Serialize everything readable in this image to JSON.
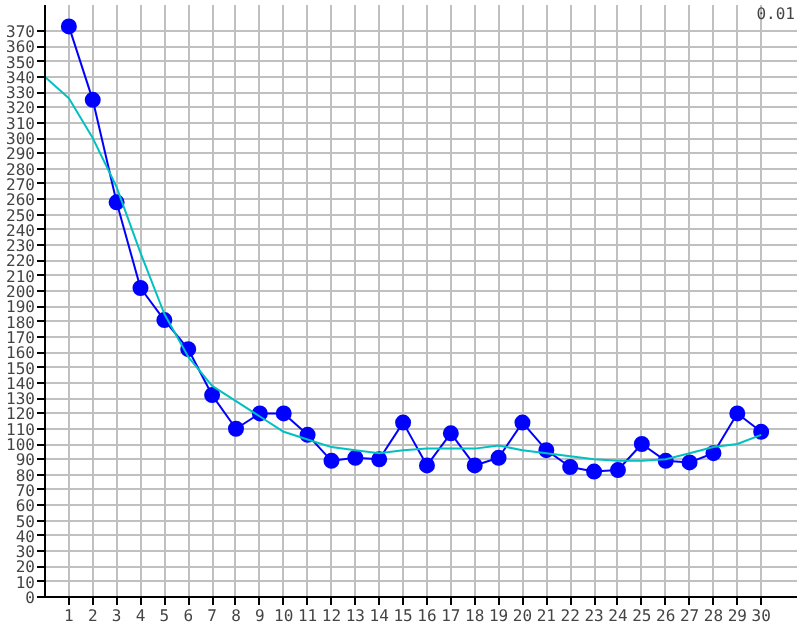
{
  "chart_data": {
    "type": "line",
    "x": [
      1,
      2,
      3,
      4,
      5,
      6,
      7,
      8,
      9,
      10,
      11,
      12,
      13,
      14,
      15,
      16,
      17,
      18,
      19,
      20,
      21,
      22,
      23,
      24,
      25,
      26,
      27,
      28,
      29,
      30
    ],
    "series": [
      {
        "color": "#0000ff",
        "marker": "circle",
        "values": [
          373,
          325,
          258,
          202,
          181,
          162,
          132,
          110,
          120,
          120,
          106,
          89,
          91,
          90,
          114,
          86,
          107,
          86,
          91,
          114,
          96,
          85,
          82,
          83,
          100,
          89,
          88,
          94,
          120,
          108
        ]
      },
      {
        "color": "#00c0c0",
        "marker": "none",
        "x": [
          0,
          1,
          2,
          3,
          4,
          5,
          6,
          7,
          8,
          9,
          10,
          11,
          12,
          13,
          14,
          15,
          16,
          17,
          18,
          19,
          20,
          21,
          22,
          23,
          24,
          25,
          26,
          27,
          28,
          29,
          30
        ],
        "values": [
          340,
          326,
          300,
          268,
          225,
          185,
          157,
          138,
          128,
          118,
          108,
          103,
          98,
          96,
          94,
          96,
          97,
          97,
          97,
          99,
          96,
          94,
          92,
          90,
          89,
          89,
          90,
          94,
          98,
          100,
          106
        ]
      }
    ],
    "xlim": [
      0,
      31.5
    ],
    "xticks": [
      1,
      2,
      3,
      4,
      5,
      6,
      7,
      8,
      9,
      10,
      11,
      12,
      13,
      14,
      15,
      16,
      17,
      18,
      19,
      20,
      21,
      22,
      23,
      24,
      25,
      26,
      27,
      28,
      29,
      30
    ],
    "ylim": [
      0,
      387
    ],
    "yticks": [
      0,
      10,
      20,
      30,
      40,
      50,
      60,
      70,
      80,
      90,
      100,
      110,
      120,
      130,
      140,
      150,
      160,
      170,
      180,
      190,
      200,
      210,
      220,
      230,
      240,
      250,
      260,
      270,
      280,
      290,
      300,
      310,
      320,
      330,
      340,
      350,
      360,
      370
    ],
    "grid": true,
    "annotations": [
      "0.01"
    ]
  }
}
